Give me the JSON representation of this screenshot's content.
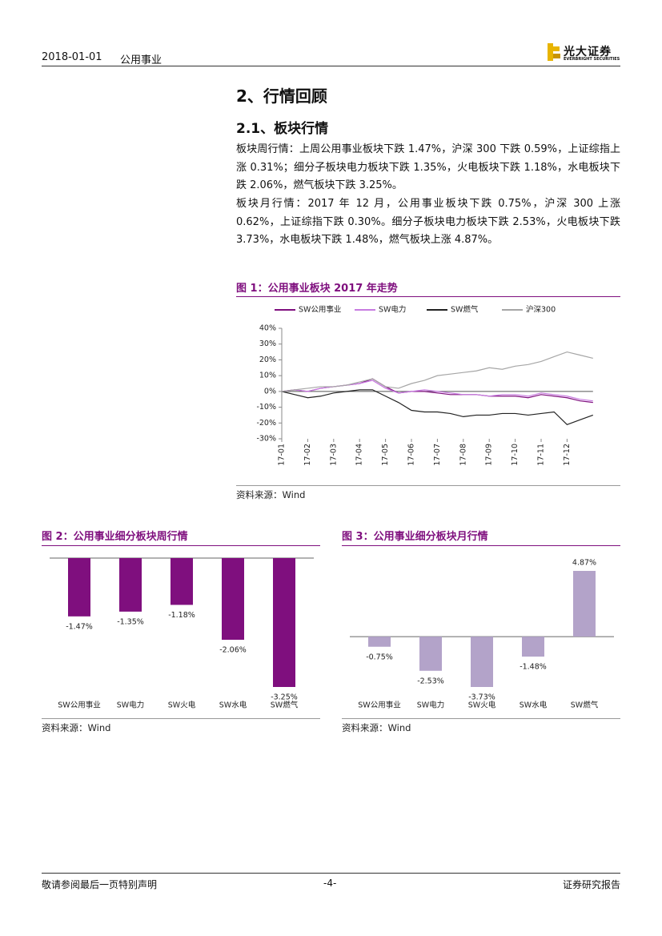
{
  "header": {
    "date": "2018-01-01",
    "sector": "公用事业",
    "logo_cn": "光大证券",
    "logo_en": "EVERBRIGHT SECURITIES"
  },
  "section": {
    "title": "2、行情回顾",
    "subtitle": "2.1、板块行情",
    "paragraphs": [
      "板块周行情：上周公用事业板块下跌 1.47%，沪深 300 下跌 0.59%，上证综指上涨 0.31%；细分子板块电力板块下跌 1.35%，火电板块下跌 1.18%，水电板块下跌 2.06%，燃气板块下跌 3.25%。",
      "板块月行情：2017 年 12 月，公用事业板块下跌 0.75%，沪深 300 上涨 0.62%，上证综指下跌 0.30%。细分子板块电力板块下跌 2.53%，火电板块下跌 3.73%，水电板块下跌 1.48%，燃气板块上涨 4.87%。"
    ]
  },
  "chart_data": [
    {
      "type": "line",
      "title": "图 1：公用事业板块 2017 年走势",
      "source": "资料来源：Wind",
      "categories": [
        "17-01",
        null,
        "17-02",
        null,
        "17-03",
        null,
        "17-04",
        null,
        "17-05",
        null,
        "17-06",
        null,
        "17-07",
        null,
        "17-08",
        null,
        "17-09",
        null,
        "17-10",
        null,
        "17-11",
        null,
        "17-12",
        null,
        null
      ],
      "series": [
        {
          "name": "SW公用事业",
          "color": "#7f0f7e",
          "values": [
            0,
            1,
            0,
            2,
            3,
            4,
            5,
            8,
            3,
            -1,
            0,
            0,
            -1,
            -2,
            -2,
            -2,
            -3,
            -3,
            -3,
            -4,
            -2,
            -3,
            -4,
            -6,
            -7
          ]
        },
        {
          "name": "SW电力",
          "color": "#c77be0",
          "values": [
            0,
            1,
            0,
            2,
            3,
            4,
            5,
            7,
            2,
            -1,
            0,
            1,
            0,
            -1,
            -2,
            -2,
            -3,
            -2,
            -2,
            -3,
            -1,
            -2,
            -3,
            -5,
            -6
          ]
        },
        {
          "name": "SW燃气",
          "color": "#222222",
          "values": [
            0,
            -2,
            -4,
            -3,
            -1,
            0,
            1,
            1,
            -3,
            -7,
            -12,
            -13,
            -13,
            -14,
            -16,
            -15,
            -15,
            -14,
            -14,
            -15,
            -14,
            -13,
            -21,
            -18,
            -15
          ]
        },
        {
          "name": "沪深300",
          "color": "#a6a6a6",
          "values": [
            0,
            1,
            2,
            3,
            3,
            4,
            6,
            8,
            3,
            2,
            5,
            7,
            10,
            11,
            12,
            13,
            15,
            14,
            16,
            17,
            19,
            22,
            25,
            23,
            21
          ]
        }
      ],
      "ylim": [
        -30,
        40
      ],
      "yticks": [
        {
          "value": -30,
          "label": "-30%"
        },
        {
          "value": -20,
          "label": "-20%"
        },
        {
          "value": -10,
          "label": "-10%"
        },
        {
          "value": 0,
          "label": "0%"
        },
        {
          "value": 10,
          "label": "10%"
        },
        {
          "value": 20,
          "label": "20%"
        },
        {
          "value": 30,
          "label": "30%"
        },
        {
          "value": 40,
          "label": "40%"
        }
      ],
      "grid": false,
      "legend": "top"
    },
    {
      "type": "bar",
      "title": "图 2：公用事业细分板块周行情",
      "source": "资料来源：Wind",
      "color": "#7f0f7e",
      "categories": [
        "SW公用事业",
        "SW电力",
        "SW火电",
        "SW水电",
        "SW燃气"
      ],
      "values": [
        -1.47,
        -1.35,
        -1.18,
        -2.06,
        -3.25
      ],
      "value_labels": [
        "-1.47%",
        "-1.35%",
        "-1.18%",
        "-2.06%",
        "-3.25%"
      ]
    },
    {
      "type": "bar",
      "title": "图 3：公用事业细分板块月行情",
      "source": "资料来源：Wind",
      "color": "#b3a3c9",
      "categories": [
        "SW公用事业",
        "SW电力",
        "SW火电",
        "SW水电",
        "SW燃气"
      ],
      "values": [
        -0.75,
        -2.53,
        -3.73,
        -1.48,
        4.87
      ],
      "value_labels": [
        "-0.75%",
        "-2.53%",
        "-3.73%",
        "-1.48%",
        "4.87%"
      ]
    }
  ],
  "footer": {
    "left": "敬请参阅最后一页特别声明",
    "page": "-4-",
    "right": "证券研究报告"
  }
}
